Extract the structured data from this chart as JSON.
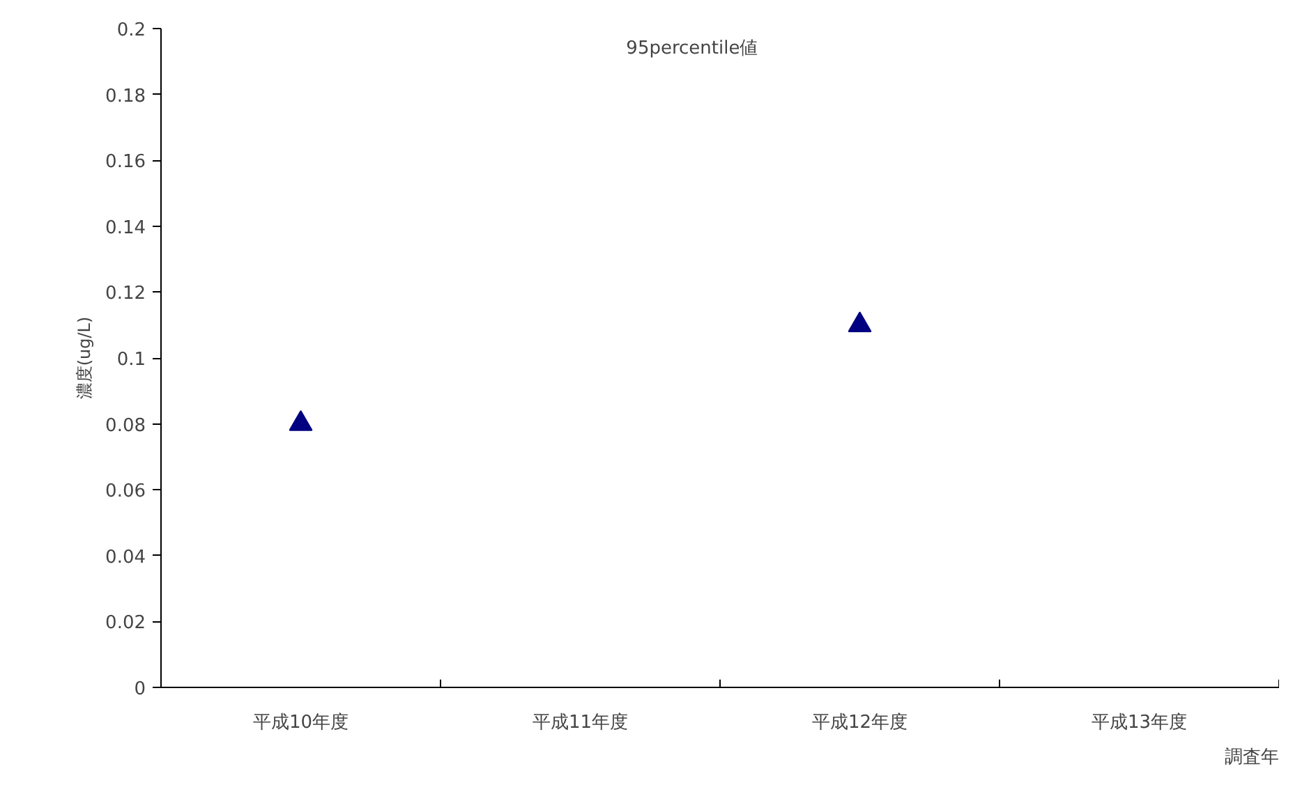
{
  "chart_data": {
    "type": "scatter",
    "title": "95percentile値",
    "xlabel": "調査年",
    "ylabel": "濃度(ug/L)",
    "categories": [
      "平成10年度",
      "平成11年度",
      "平成12年度",
      "平成13年度"
    ],
    "series": [
      {
        "color": "#000080",
        "values": [
          0.08,
          null,
          0.11,
          null
        ]
      }
    ],
    "ylim": [
      0,
      0.2
    ],
    "yticks": [
      0,
      0.02,
      0.04,
      0.06,
      0.08,
      {
        "value": 0.1,
        "label": "0.1"
      },
      0.12,
      0.14,
      0.16,
      0.18,
      {
        "value": 0.2,
        "label": "0.2"
      }
    ],
    "marker": "triangle",
    "grid": false
  }
}
